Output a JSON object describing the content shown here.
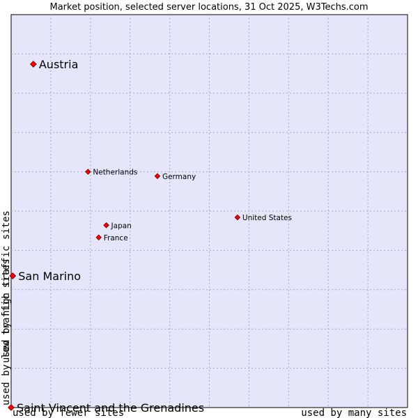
{
  "chart_data": {
    "type": "scatter",
    "title": "Market position, selected server locations, 31 Oct 2025, W3Techs.com",
    "xlabel_left": "used by fewer sites",
    "xlabel_right": "used by many sites",
    "ylabel_top": "used by high traffic sites",
    "ylabel_bottom": "used by low traffic sites",
    "xlim": [
      0,
      100
    ],
    "ylim": [
      0,
      100
    ],
    "grid": true,
    "colors": {
      "plot_bg": "#e6e6fa",
      "grid": "#a6a6c8",
      "marker": "#ff0000",
      "border": "#000000"
    },
    "points": [
      {
        "name": "Austria",
        "x": 5.6,
        "y": 87.4,
        "size": "large"
      },
      {
        "name": "Netherlands",
        "x": 19.4,
        "y": 60.0,
        "size": "small"
      },
      {
        "name": "Germany",
        "x": 36.9,
        "y": 58.9,
        "size": "small"
      },
      {
        "name": "United States",
        "x": 57.1,
        "y": 48.4,
        "size": "small"
      },
      {
        "name": "Japan",
        "x": 24.0,
        "y": 46.4,
        "size": "small"
      },
      {
        "name": "France",
        "x": 22.1,
        "y": 43.3,
        "size": "small"
      },
      {
        "name": "San Marino",
        "x": 0.4,
        "y": 33.5,
        "size": "large"
      },
      {
        "name": "Saint Vincent and the Grenadines",
        "x": 0.0,
        "y": 0.0,
        "size": "large"
      }
    ]
  }
}
